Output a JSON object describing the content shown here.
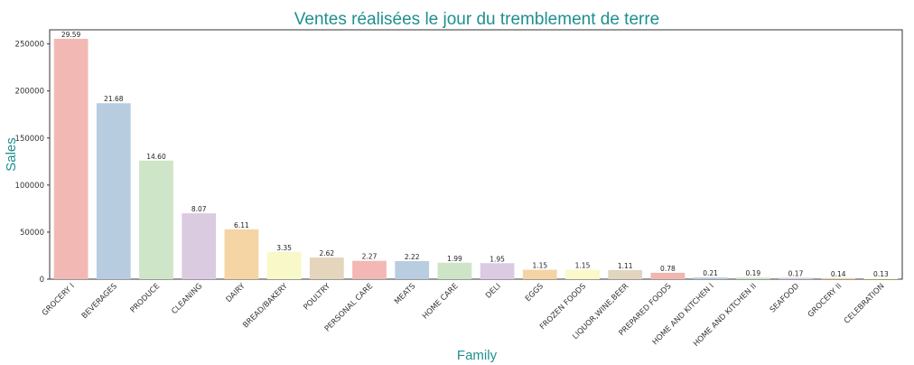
{
  "chart_data": {
    "type": "bar",
    "title": "Ventes réalisées le jour du tremblement de terre",
    "xlabel": "Family",
    "ylabel": "Sales",
    "ylim": [
      0,
      265000
    ],
    "yticks": [
      0,
      50000,
      100000,
      150000,
      200000,
      250000
    ],
    "ytick_labels": [
      "0",
      "50000",
      "100000",
      "150000",
      "200000",
      "250000"
    ],
    "grid": false,
    "legend": "none",
    "categories": [
      "GROCERY I",
      "BEVERAGES",
      "PRODUCE",
      "CLEANING",
      "DAIRY",
      "BREAD/BAKERY",
      "POULTRY",
      "PERSONAL CARE",
      "MEATS",
      "HOME CARE",
      "DELI",
      "EGGS",
      "FROZEN FOODS",
      "LIQUOR,WINE,BEER",
      "PREPARED FOODS",
      "HOME AND KITCHEN I",
      "HOME AND KITCHEN II",
      "SEAFOOD",
      "GROCERY II",
      "CELEBRATION"
    ],
    "values": [
      255500,
      187000,
      126000,
      70000,
      53000,
      29000,
      23000,
      19500,
      19200,
      17500,
      17000,
      10000,
      10000,
      9700,
      6800,
      1800,
      1700,
      1500,
      1200,
      1100
    ],
    "data_labels": [
      "29.59",
      "21.68",
      "14.60",
      "8.07",
      "6.11",
      "3.35",
      "2.62",
      "2.27",
      "2.22",
      "1.99",
      "1.95",
      "1.15",
      "1.15",
      "1.11",
      "0.78",
      "0.21",
      "0.19",
      "0.17",
      "0.14",
      "0.13"
    ],
    "colors": [
      "#f2b9b4",
      "#b8ccdf",
      "#cfe5c7",
      "#dbcbe1",
      "#f5d5a4",
      "#f9f8c9",
      "#e4d5bc",
      "#f3b8b4",
      "#b9cde0",
      "#cde5c6",
      "#dacbe3",
      "#f5d3a5",
      "#fbf8c9",
      "#e2d5c0",
      "#f0b6b0",
      "#b8cbde",
      "#cfe4c7",
      "#dacbe1",
      "#f5d5a5",
      "#faf8c8"
    ],
    "title_color": "#1f8f8f",
    "label_color": "#1f8f8f"
  }
}
